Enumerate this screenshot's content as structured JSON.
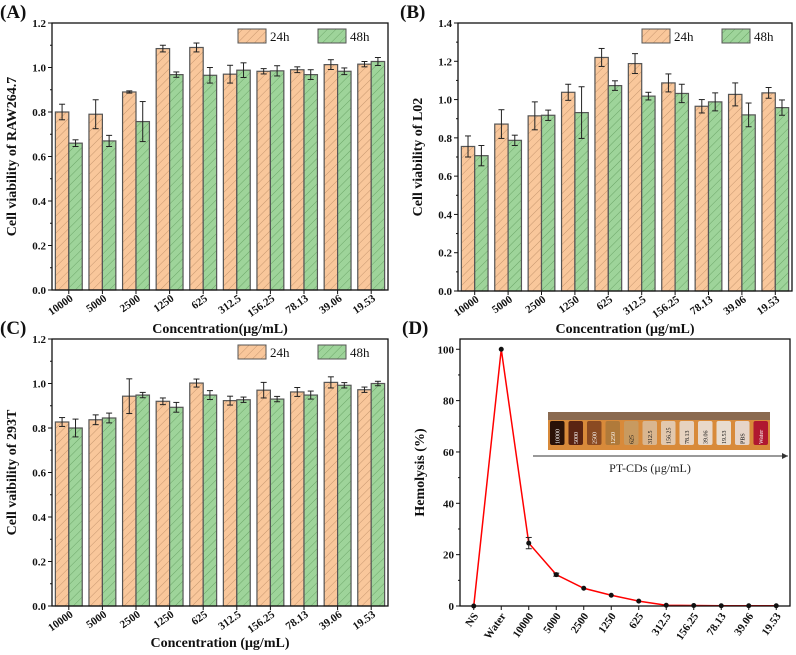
{
  "colors": {
    "h24": "#f9c79b",
    "h48": "#9ed49a",
    "line": "#ff0000",
    "edge": "#555555"
  },
  "chart_data": [
    {
      "type": "bar",
      "panel": "(A)",
      "categories": [
        "10000",
        "5000",
        "2500",
        "1250",
        "625",
        "312.5",
        "156.25",
        "78.13",
        "39.06",
        "19.53"
      ],
      "xlabel": "Concentration(μg/mL)",
      "ylabel": "Cell viability of RAW264.7",
      "ylim": [
        0,
        1.2
      ],
      "yticks": [
        "0.0",
        "0.2",
        "0.4",
        "0.6",
        "0.8",
        "1.0",
        "1.2"
      ],
      "legend": "top-right",
      "series": [
        {
          "name": "24h",
          "values": [
            0.8,
            0.79,
            0.89,
            1.085,
            1.09,
            0.97,
            0.983,
            0.99,
            1.013,
            1.015
          ],
          "errors": [
            0.035,
            0.065,
            0.005,
            0.015,
            0.02,
            0.04,
            0.012,
            0.013,
            0.022,
            0.012
          ]
        },
        {
          "name": "48h",
          "values": [
            0.66,
            0.67,
            0.757,
            0.968,
            0.965,
            0.988,
            0.985,
            0.968,
            0.983,
            1.027
          ],
          "errors": [
            0.015,
            0.025,
            0.09,
            0.012,
            0.035,
            0.033,
            0.023,
            0.022,
            0.015,
            0.018
          ]
        }
      ]
    },
    {
      "type": "bar",
      "panel": "(B)",
      "categories": [
        "10000",
        "5000",
        "2500",
        "1250",
        "625",
        "312.5",
        "156.25",
        "78.13",
        "39.06",
        "19.53"
      ],
      "xlabel": "Concentration (μg/mL)",
      "ylabel": "Cell viability of L02",
      "ylim": [
        0,
        1.4
      ],
      "yticks": [
        "0.0",
        "0.2",
        "0.4",
        "0.6",
        "0.8",
        "1.0",
        "1.2",
        "1.4"
      ],
      "legend": "top-right",
      "series": [
        {
          "name": "24h",
          "values": [
            0.755,
            0.872,
            0.915,
            1.038,
            1.22,
            1.188,
            1.087,
            0.965,
            1.027,
            1.035
          ],
          "errors": [
            0.055,
            0.075,
            0.073,
            0.042,
            0.047,
            0.052,
            0.047,
            0.035,
            0.06,
            0.028
          ]
        },
        {
          "name": "48h",
          "values": [
            0.707,
            0.787,
            0.918,
            0.932,
            1.073,
            1.018,
            1.032,
            0.988,
            0.92,
            0.958
          ],
          "errors": [
            0.053,
            0.027,
            0.027,
            0.135,
            0.025,
            0.02,
            0.048,
            0.047,
            0.062,
            0.04
          ]
        }
      ]
    },
    {
      "type": "bar",
      "panel": "(C)",
      "categories": [
        "10000",
        "5000",
        "2500",
        "1250",
        "625",
        "312.5",
        "156.25",
        "78.13",
        "39.06",
        "19.53"
      ],
      "xlabel": "Concentration (μg/mL)",
      "ylabel": "Cell vaibility of 293T",
      "ylim": [
        0,
        1.2
      ],
      "yticks": [
        "0.0",
        "0.2",
        "0.4",
        "0.6",
        "0.8",
        "1.0",
        "1.2"
      ],
      "legend": "top-right",
      "series": [
        {
          "name": "24h",
          "values": [
            0.827,
            0.837,
            0.943,
            0.92,
            1.002,
            0.923,
            0.97,
            0.962,
            1.005,
            0.972
          ],
          "errors": [
            0.02,
            0.022,
            0.078,
            0.015,
            0.018,
            0.02,
            0.035,
            0.02,
            0.025,
            0.012
          ]
        },
        {
          "name": "48h",
          "values": [
            0.8,
            0.845,
            0.948,
            0.893,
            0.948,
            0.927,
            0.93,
            0.948,
            0.992,
            1.0
          ],
          "errors": [
            0.04,
            0.022,
            0.012,
            0.022,
            0.02,
            0.012,
            0.012,
            0.018,
            0.012,
            0.01
          ]
        }
      ]
    },
    {
      "type": "line",
      "panel": "(D)",
      "categories": [
        "NS",
        "Water",
        "10000",
        "5000",
        "2500",
        "1250",
        "625",
        "312.5",
        "156.25",
        "78.13",
        "39.06",
        "19.53"
      ],
      "xlabel": "",
      "ylabel": "Hemolysis (%)",
      "ylim": [
        0,
        104
      ],
      "yticks": [
        "0",
        "20",
        "40",
        "60",
        "80",
        "100"
      ],
      "series": [
        {
          "name": "Hemolysis",
          "values": [
            0,
            100,
            24.5,
            12.2,
            6.9,
            4.2,
            1.9,
            0.3,
            0.2,
            0.1,
            0.1,
            0.1
          ],
          "errors": [
            0,
            0,
            2.2,
            0.6,
            0.4,
            0.3,
            0.3,
            0.2,
            0.1,
            0.1,
            0.1,
            0.1
          ]
        }
      ],
      "inset": {
        "labels": [
          "10000",
          "5000",
          "2500",
          "1250",
          "625",
          "312.5",
          "156.25",
          "78.13",
          "39.06",
          "19.53",
          "PBS",
          "Water"
        ],
        "tube_colors": [
          "#2a1208",
          "#5a2412",
          "#8a4a22",
          "#b07a3a",
          "#c89a60",
          "#d9b690",
          "#e2c8ae",
          "#e6d2c0",
          "#e8d8ca",
          "#e8dccf",
          "#e6d4c8",
          "#b01830"
        ],
        "arrow_label": "PT-CDs (μg/mL)"
      }
    }
  ]
}
